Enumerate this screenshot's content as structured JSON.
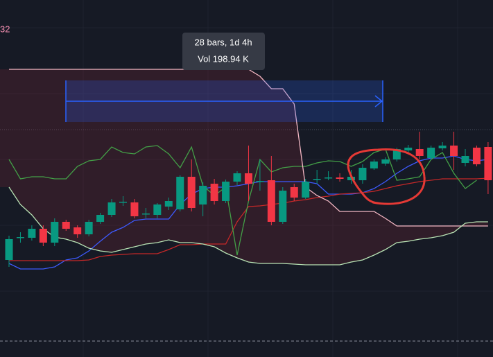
{
  "corner_value": "32",
  "tooltip": {
    "line1": "28 bars, 1d 4h",
    "line2": "Vol 198.94 K"
  },
  "chart_data": {
    "type": "candlestick",
    "ylim": [
      0,
      515
    ],
    "up_color": "#089981",
    "down_color": "#f23645",
    "open": [
      140,
      172,
      172,
      185,
      165,
      195,
      187,
      177,
      195,
      205,
      223,
      223,
      206,
      205,
      217,
      213,
      260,
      220,
      250,
      225,
      253,
      265,
      253,
      255,
      195,
      245,
      230,
      256,
      258,
      259,
      255,
      255,
      272,
      279,
      285,
      298,
      300,
      287,
      301,
      305,
      280,
      302,
      303
    ],
    "high": [
      175,
      180,
      190,
      190,
      200,
      198,
      190,
      198,
      208,
      228,
      232,
      228,
      215,
      222,
      230,
      262,
      285,
      252,
      257,
      256,
      268,
      305,
      285,
      290,
      245,
      250,
      257,
      270,
      268,
      265,
      270,
      278,
      285,
      288,
      302,
      306,
      325,
      305,
      310,
      325,
      300,
      305,
      310
    ],
    "low": [
      130,
      165,
      168,
      160,
      160,
      182,
      172,
      174,
      192,
      202,
      218,
      200,
      200,
      200,
      212,
      210,
      210,
      203,
      220,
      222,
      248,
      225,
      240,
      190,
      192,
      225,
      228,
      250,
      255,
      253,
      250,
      250,
      270,
      276,
      282,
      295,
      285,
      284,
      298,
      270,
      275,
      275,
      235
    ],
    "close": [
      170,
      173,
      185,
      165,
      195,
      185,
      177,
      195,
      205,
      223,
      224,
      203,
      207,
      220,
      225,
      260,
      215,
      247,
      225,
      253,
      265,
      250,
      254,
      195,
      240,
      230,
      253,
      257,
      259,
      257,
      260,
      273,
      282,
      285,
      300,
      302,
      290,
      302,
      305,
      290,
      290,
      278,
      255
    ],
    "lines": [
      {
        "color": "#3d5afe",
        "values": [
          135,
          127,
          127,
          127,
          130,
          140,
          143,
          153,
          167,
          180,
          187,
          197,
          199,
          199,
          199,
          220,
          235,
          243,
          245,
          245,
          247,
          250,
          253,
          253,
          253,
          253,
          253,
          250,
          235,
          235,
          235,
          237,
          243,
          253,
          265,
          275,
          283,
          287,
          287,
          290,
          285,
          283,
          285
        ]
      },
      {
        "color": "#c62828",
        "values": [
          139,
          139,
          139,
          139,
          139,
          139,
          139,
          140,
          145,
          147,
          148,
          149,
          149,
          149,
          155,
          162,
          162,
          163,
          163,
          163,
          195,
          217,
          218,
          220,
          222,
          225,
          227,
          230,
          232,
          235,
          236,
          237,
          239,
          243,
          247,
          250,
          253,
          255,
          257,
          257,
          257,
          257,
          258
        ]
      },
      {
        "color": "#43a047",
        "values": [
          285,
          257,
          260,
          260,
          257,
          257,
          275,
          283,
          285,
          303,
          295,
          293,
          303,
          305,
          293,
          273,
          303,
          247,
          233,
          245,
          147,
          225,
          285,
          267,
          273,
          275,
          275,
          280,
          283,
          282,
          275,
          282,
          295,
          300,
          255,
          257,
          260,
          285,
          295,
          265,
          243,
          255,
          null
        ]
      },
      {
        "color": "#f4b8c4",
        "values": [
          415,
          415,
          415,
          415,
          415,
          415,
          415,
          415,
          415,
          415,
          415,
          415,
          415,
          415,
          415,
          415,
          415,
          415,
          415,
          415,
          415,
          415,
          405,
          387,
          387,
          365,
          245,
          233,
          225,
          210,
          210,
          210,
          210,
          200,
          189,
          189,
          189,
          189,
          189,
          189,
          189,
          189,
          189
        ]
      },
      {
        "color": "#b9e4b5",
        "values": [
          245,
          220,
          205,
          185,
          173,
          170,
          165,
          157,
          153,
          151,
          155,
          159,
          163,
          165,
          169,
          165,
          165,
          163,
          159,
          150,
          143,
          137,
          135,
          135,
          135,
          134,
          133,
          133,
          133,
          133,
          137,
          140,
          147,
          155,
          165,
          167,
          170,
          172,
          175,
          180,
          193,
          195,
          195
        ]
      }
    ],
    "cloud_color": "rgba(120,40,55,0.28)"
  }
}
